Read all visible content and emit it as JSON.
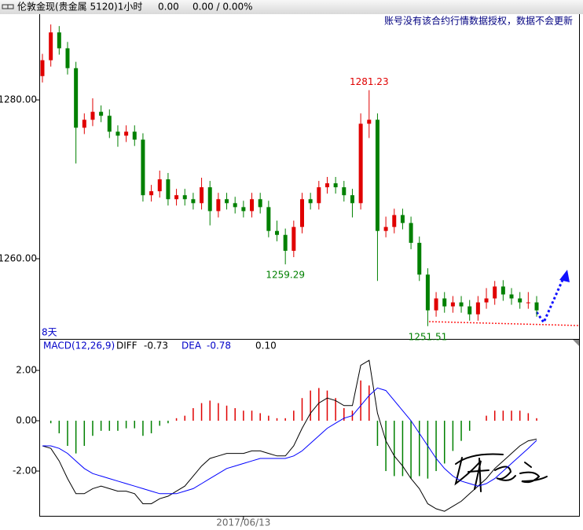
{
  "header": {
    "price": "0.00",
    "change": "0.00 / 0.00%"
  },
  "notice": "账号没有该合约行情数据授权，数据不会更新",
  "chart_data": [
    {
      "type": "candlestick",
      "title": "伦敦金现(贵金属 5120)1小时",
      "label": "8天",
      "up_color": "#e00000",
      "down_color": "#008000",
      "open": [
        1283,
        1285,
        1288.5,
        1286.5,
        1284,
        1276.5,
        1277.5,
        1278.5,
        1278,
        1276,
        1275.5,
        1276,
        1275,
        1268,
        1268.5,
        1270,
        1267.5,
        1268,
        1267.5,
        1267,
        1269,
        1266,
        1267.5,
        1267,
        1266.5,
        1266,
        1267.5,
        1266.5,
        1263.5,
        1263,
        1261,
        1264,
        1267.5,
        1267,
        1269,
        1269.5,
        1269,
        1268,
        1267,
        1277,
        1277.5,
        1263.5,
        1264,
        1265.5,
        1264.5,
        1262,
        1258,
        1253.5,
        1255,
        1254,
        1254.5,
        1254,
        1253,
        1254.5,
        1255,
        1256.5,
        1255.5,
        1255,
        1254.5,
        1254.5
      ],
      "high": [
        1285.8,
        1289.5,
        1289.3,
        1287.3,
        1284.8,
        1278.3,
        1280.2,
        1279.3,
        1278.8,
        1276.8,
        1276.8,
        1276.8,
        1275.8,
        1269.3,
        1271.1,
        1270.8,
        1268.8,
        1268.8,
        1268.3,
        1270.2,
        1269.8,
        1268.3,
        1268.3,
        1267.8,
        1267.3,
        1268.3,
        1268.3,
        1267.3,
        1264.8,
        1263.8,
        1264.8,
        1268.3,
        1268.3,
        1269.8,
        1270.3,
        1270.3,
        1269.8,
        1268.8,
        1278.3,
        1281.23,
        1278.3,
        1265.3,
        1266.3,
        1266.3,
        1265.3,
        1262.8,
        1258.8,
        1255.8,
        1255.8,
        1255.3,
        1255.3,
        1254.8,
        1255.3,
        1256.3,
        1257.2,
        1257.3,
        1256.3,
        1255.8,
        1255.8,
        1255.3
      ],
      "low": [
        1282.2,
        1284.2,
        1285.7,
        1283.2,
        1272,
        1275.7,
        1276.7,
        1277.2,
        1275.2,
        1274.1,
        1274.7,
        1274.2,
        1267.2,
        1267.2,
        1267.7,
        1266.7,
        1266.7,
        1266.7,
        1266.2,
        1266.2,
        1264.2,
        1265.2,
        1266.2,
        1265.7,
        1265.2,
        1265.2,
        1265.7,
        1262.7,
        1262.2,
        1259.29,
        1260.2,
        1263.2,
        1266.2,
        1266.2,
        1268.2,
        1268.2,
        1267.2,
        1265.2,
        1266.2,
        1275.2,
        1257.2,
        1262.7,
        1263.2,
        1263.7,
        1261.2,
        1257.2,
        1251.51,
        1252.7,
        1253.2,
        1253.2,
        1253.2,
        1252.2,
        1252.2,
        1253.7,
        1254.2,
        1254.7,
        1254.2,
        1253.7,
        1253.7,
        1252.7
      ],
      "close": [
        1285,
        1288.5,
        1286.5,
        1284,
        1276.5,
        1277.5,
        1278.5,
        1278,
        1276,
        1275.5,
        1276,
        1275,
        1268,
        1268.5,
        1270,
        1267.5,
        1268,
        1267.5,
        1267,
        1269,
        1266,
        1267.5,
        1267,
        1266.5,
        1266,
        1267.5,
        1266.5,
        1263.5,
        1263,
        1261,
        1264,
        1267.5,
        1267,
        1269,
        1269.5,
        1269,
        1268,
        1267,
        1277,
        1277.5,
        1263.5,
        1264,
        1265.5,
        1264.5,
        1262,
        1258,
        1253.5,
        1255,
        1254,
        1254.5,
        1254,
        1253,
        1254.5,
        1255,
        1256.5,
        1255.5,
        1255,
        1254.5,
        1254.5,
        1253.5
      ],
      "annotations": [
        1281.23,
        1259.29,
        1251.51
      ],
      "annotation_colors": [
        "#e00000",
        "#008000",
        "#008000"
      ],
      "ylim": [
        1250,
        1290.8
      ],
      "yticks": [
        {
          "value": 1280,
          "label": "1280.00"
        },
        {
          "value": 1260,
          "label": "1260.00"
        }
      ],
      "grid": false
    },
    {
      "type": "macd",
      "title": "MACD(12,26,9)",
      "categories": [
        null,
        null,
        null,
        null,
        null,
        null,
        null,
        null,
        null,
        null,
        null,
        null,
        null,
        null,
        null,
        null,
        null,
        null,
        null,
        null,
        null,
        null,
        null,
        null,
        "2017/06/13",
        null,
        null,
        null,
        null,
        null,
        null,
        null,
        null,
        null,
        null,
        null,
        null,
        null,
        null,
        null,
        null,
        null,
        null,
        null,
        null,
        null,
        null,
        null,
        null,
        null,
        null,
        null,
        null,
        null,
        null,
        null,
        null,
        null,
        null,
        null
      ],
      "series": [
        {
          "name": "DIFF",
          "color": "#000000",
          "values": [
            -1.0,
            -1.1,
            -1.6,
            -2.3,
            -2.9,
            -2.9,
            -2.7,
            -2.6,
            -2.7,
            -2.8,
            -2.8,
            -2.9,
            -3.3,
            -3.3,
            -3.1,
            -3.0,
            -2.8,
            -2.6,
            -2.2,
            -1.8,
            -1.5,
            -1.4,
            -1.3,
            -1.3,
            -1.3,
            -1.2,
            -1.2,
            -1.3,
            -1.4,
            -1.4,
            -1.0,
            -0.3,
            0.3,
            0.7,
            0.9,
            0.8,
            0.6,
            0.6,
            2.2,
            2.4,
            0.3,
            -0.8,
            -1.4,
            -1.8,
            -2.3,
            -2.7,
            -3.3,
            -3.5,
            -3.6,
            -3.4,
            -3.2,
            -2.9,
            -2.6,
            -2.3,
            -1.9,
            -1.6,
            -1.3,
            -1.0,
            -0.8,
            -0.73
          ]
        },
        {
          "name": "DEA",
          "color": "#0000ff",
          "values": [
            -1.0,
            -1.0,
            -1.1,
            -1.3,
            -1.6,
            -1.9,
            -2.1,
            -2.2,
            -2.3,
            -2.4,
            -2.5,
            -2.6,
            -2.7,
            -2.8,
            -2.9,
            -2.9,
            -2.9,
            -2.8,
            -2.7,
            -2.5,
            -2.3,
            -2.1,
            -1.9,
            -1.8,
            -1.7,
            -1.6,
            -1.5,
            -1.5,
            -1.5,
            -1.5,
            -1.4,
            -1.2,
            -0.9,
            -0.6,
            -0.3,
            -0.1,
            0.1,
            0.2,
            0.6,
            1.0,
            1.3,
            1.2,
            0.8,
            0.4,
            0.0,
            -0.5,
            -1.0,
            -1.5,
            -1.9,
            -2.2,
            -2.4,
            -2.5,
            -2.6,
            -2.5,
            -2.3,
            -2.0,
            -1.7,
            -1.4,
            -1.1,
            -0.78
          ]
        },
        {
          "up_color": "#e00000",
          "down_color": "#008000",
          "values": [
            0,
            -0.1,
            -0.5,
            -1.0,
            -1.3,
            -1.0,
            -0.6,
            -0.4,
            -0.4,
            -0.4,
            -0.3,
            -0.3,
            -0.6,
            -0.5,
            -0.2,
            -0.1,
            0.1,
            0.2,
            0.5,
            0.7,
            0.8,
            0.7,
            0.6,
            0.5,
            0.4,
            0.4,
            0.3,
            0.2,
            0.1,
            0.1,
            0.4,
            0.9,
            1.2,
            1.3,
            1.2,
            0.9,
            0.5,
            0.4,
            1.6,
            1.4,
            -1.0,
            -2.0,
            -2.2,
            -2.2,
            -2.3,
            -2.2,
            -2.3,
            -2.0,
            -1.7,
            -1.2,
            -0.8,
            -0.4,
            0.0,
            0.2,
            0.4,
            0.4,
            0.4,
            0.4,
            0.3,
            0.1
          ],
          "value_labels": [
            null,
            null,
            null,
            null,
            null,
            null,
            null,
            null,
            null,
            null,
            null,
            null,
            null,
            null,
            null,
            null,
            null,
            null,
            null,
            null,
            null,
            null,
            null,
            null,
            null,
            null,
            null,
            null,
            null,
            null,
            null,
            null,
            null,
            null,
            null,
            null,
            null,
            null,
            null,
            null,
            null,
            null,
            null,
            null,
            null,
            null,
            null,
            null,
            null,
            null,
            null,
            null,
            null,
            null,
            null,
            null,
            null,
            null,
            null,
            "0.10"
          ]
        }
      ],
      "ylim": [
        -3.78,
        3.22
      ],
      "yticks": [
        {
          "value": 2,
          "label": "2.00"
        },
        {
          "value": 0,
          "label": "0.00"
        },
        {
          "value": -2,
          "label": "-2.00"
        }
      ]
    }
  ]
}
